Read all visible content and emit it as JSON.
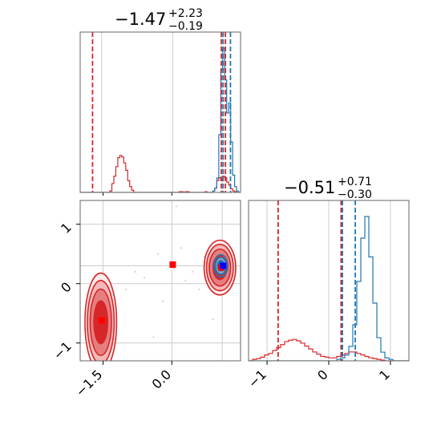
{
  "chart_data": {
    "type": "corner",
    "colors": {
      "red": "#d62728",
      "blue": "#1f77b4",
      "red_fill": "#e8a0a1",
      "red_core": "#c0392b",
      "grid": "#cccccc",
      "axis": "#666666"
    },
    "parameters": [
      {
        "title_main": "−1.47",
        "title_sup": "+2.23",
        "title_sub": "−0.19",
        "range": [
          -2.0,
          1.5
        ],
        "ticks": [
          -1.5,
          0.0
        ],
        "tick_labels": [
          "−1.5",
          "0.0"
        ]
      },
      {
        "title_main": "−0.51",
        "title_sup": "+0.71",
        "title_sub": "−0.30",
        "range": [
          -1.3,
          1.3
        ],
        "ticks": [
          -1,
          0,
          1
        ],
        "tick_labels": [
          "−1",
          "0",
          "1"
        ]
      }
    ],
    "histograms": [
      {
        "param": 0,
        "bins": [
          -2.0,
          1.5
        ],
        "red_counts": [
          0,
          0,
          0,
          0,
          0,
          0,
          0,
          0,
          0,
          0,
          0,
          0,
          0,
          0,
          0,
          0.02,
          0.12,
          0.22,
          0.35,
          0.47,
          0.5,
          0.48,
          0.4,
          0.3,
          0.16,
          0.08,
          0.03,
          0,
          0,
          0,
          0,
          0,
          0,
          0,
          0,
          0,
          0,
          0,
          0,
          0,
          0,
          0,
          0,
          0,
          0,
          0,
          0,
          0,
          0,
          0,
          0.01,
          0.01,
          0,
          0.01,
          0.01,
          0,
          0,
          0,
          0,
          0,
          0,
          0,
          0,
          0.01,
          0,
          0,
          0,
          0.02,
          0.06,
          0.16,
          0.2,
          0.16,
          0.22,
          0.2,
          0.14,
          0.1,
          0.05,
          0.02,
          0.01,
          0,
          0
        ],
        "blue_counts": [
          0,
          0,
          0,
          0,
          0,
          0,
          0,
          0,
          0,
          0,
          0,
          0,
          0,
          0,
          0,
          0,
          0,
          0,
          0,
          0,
          0,
          0,
          0,
          0,
          0,
          0,
          0,
          0,
          0,
          0,
          0,
          0,
          0,
          0,
          0,
          0,
          0,
          0,
          0,
          0,
          0,
          0,
          0,
          0,
          0,
          0,
          0,
          0,
          0,
          0,
          0,
          0,
          0,
          0,
          0,
          0,
          0,
          0,
          0,
          0,
          0,
          0,
          0,
          0,
          0,
          0,
          0,
          0.01,
          0.03,
          0.1,
          0.4,
          0.85,
          1.0,
          0.78,
          0.55,
          0.62,
          0.35,
          0.12,
          0.04,
          0.01,
          0
        ],
        "red_lines": [
          -1.73,
          1.08,
          1.17
        ],
        "blue_lines": [
          1.12,
          1.28
        ],
        "gray_lines": [
          -1.53,
          0.02,
          1.1
        ]
      },
      {
        "param": 1,
        "bins": [
          -1.3,
          1.3
        ],
        "red_counts": [
          0,
          0.02,
          0.03,
          0.05,
          0.08,
          0.1,
          0.14,
          0.18,
          0.22,
          0.26,
          0.28,
          0.29,
          0.27,
          0.24,
          0.2,
          0.16,
          0.12,
          0.09,
          0.06,
          0.05,
          0.04,
          0.04,
          0.06,
          0.08,
          0.1,
          0.12,
          0.12,
          0.1,
          0.08,
          0.06,
          0.04,
          0.03,
          0.02,
          0.01,
          0,
          0,
          0,
          0,
          0,
          0
        ],
        "blue_counts": [
          0,
          0,
          0,
          0,
          0,
          0,
          0,
          0,
          0,
          0,
          0,
          0,
          0,
          0,
          0,
          0,
          0,
          0,
          0,
          0,
          0,
          0,
          0.01,
          0.02,
          0.04,
          0.1,
          0.25,
          0.55,
          0.85,
          1.0,
          0.72,
          0.4,
          0.16,
          0.06,
          0.02,
          0.01,
          0,
          0,
          0,
          0
        ],
        "red_lines": [
          -0.82,
          0.2,
          0.22
        ],
        "blue_lines": [
          0.22,
          0.43
        ],
        "gray_lines": [
          -1.0,
          0.0,
          1.0
        ]
      }
    ],
    "scatter_2d": {
      "x_range": [
        -2.0,
        1.5
      ],
      "y_range": [
        -1.3,
        1.4
      ],
      "red_clusters": [
        {
          "cx": -1.55,
          "cy": -0.65,
          "sx": 0.15,
          "sy": 0.36,
          "levels": [
            1.0,
            1.55,
            1.95,
            2.3
          ]
        },
        {
          "cx": 1.05,
          "cy": 0.27,
          "sx": 0.15,
          "sy": 0.2,
          "levels": [
            1.0,
            1.55,
            1.95,
            2.3
          ]
        }
      ],
      "blue_clusters": [
        {
          "cx": 1.07,
          "cy": 0.3,
          "sx": 0.09,
          "sy": 0.11,
          "levels": [
            0.8,
            1.3,
            1.7
          ]
        }
      ],
      "red_markers": [
        [
          -1.53,
          -0.62
        ],
        [
          0.02,
          0.32
        ],
        [
          1.08,
          0.27
        ]
      ],
      "blue_markers": [
        [
          1.12,
          0.3
        ]
      ],
      "scatter_points": [
        [
          -0.3,
          0.5
        ],
        [
          0.2,
          0.6
        ],
        [
          -0.8,
          0.2
        ],
        [
          0.1,
          1.3
        ],
        [
          0.6,
          -0.1
        ],
        [
          0.45,
          0.2
        ],
        [
          -0.2,
          -0.3
        ],
        [
          0.9,
          -0.6
        ],
        [
          -0.6,
          0.1
        ],
        [
          0.3,
          0.05
        ],
        [
          0.7,
          0.45
        ],
        [
          -1.0,
          -0.1
        ],
        [
          -0.4,
          -0.9
        ],
        [
          0.05,
          0.25
        ]
      ]
    }
  }
}
